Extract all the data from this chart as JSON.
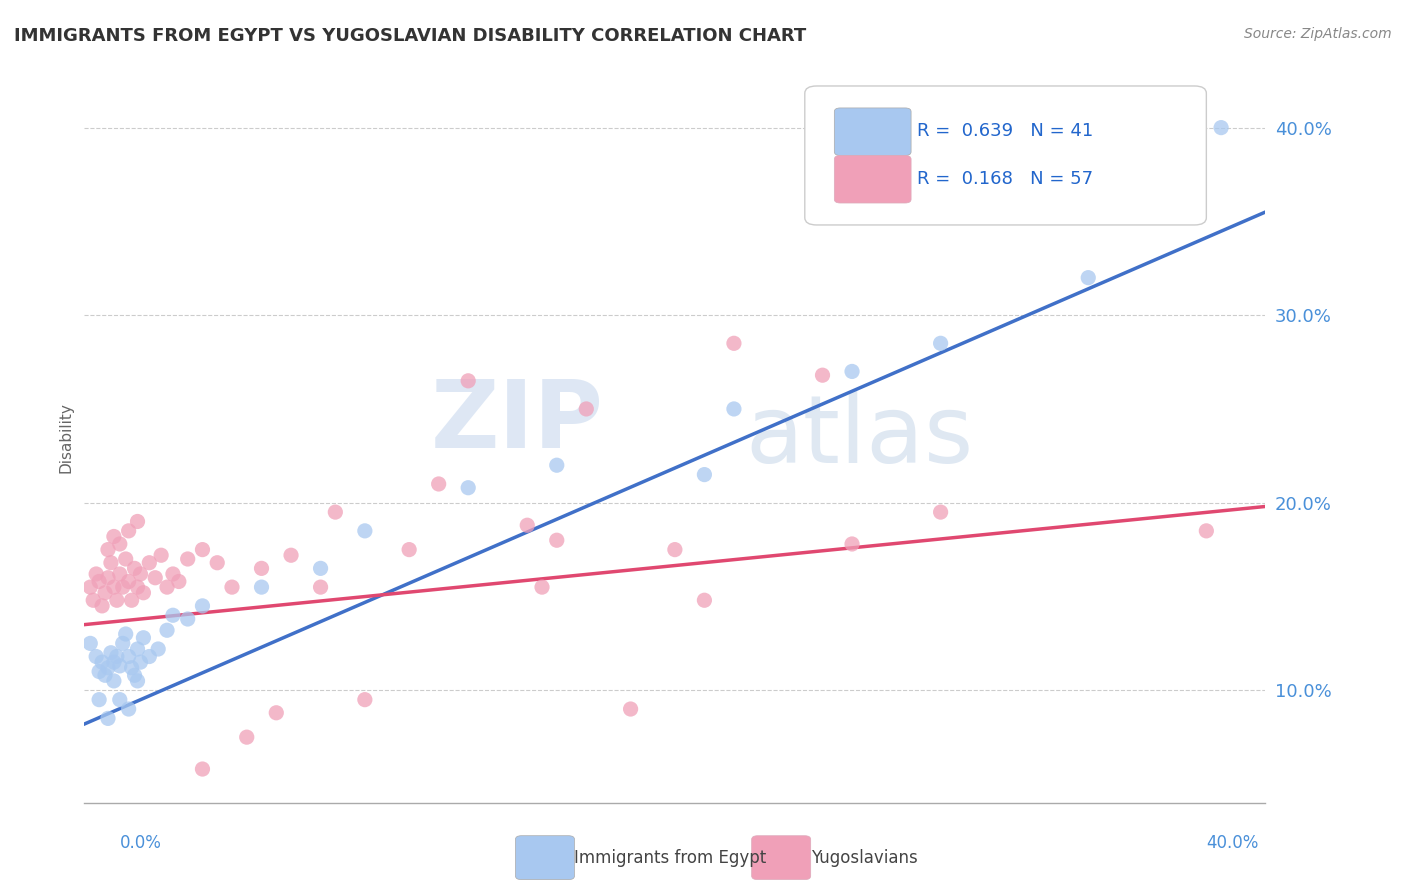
{
  "title": "IMMIGRANTS FROM EGYPT VS YUGOSLAVIAN DISABILITY CORRELATION CHART",
  "source": "Source: ZipAtlas.com",
  "ylabel": "Disability",
  "y_ticks": [
    0.1,
    0.2,
    0.3,
    0.4
  ],
  "y_tick_labels": [
    "10.0%",
    "20.0%",
    "30.0%",
    "40.0%"
  ],
  "x_lim": [
    0.0,
    0.4
  ],
  "y_lim": [
    0.04,
    0.43
  ],
  "blue_color": "#a8c8f0",
  "pink_color": "#f0a0b8",
  "blue_line_color": "#4070c8",
  "pink_line_color": "#e04870",
  "legend_R1": "R = 0.639",
  "legend_N1": "N = 41",
  "legend_R2": "R = 0.168",
  "legend_N2": "N = 57",
  "watermark_zip": "ZIP",
  "watermark_atlas": "atlas",
  "blue_line_x0": 0.0,
  "blue_line_y0": 0.082,
  "blue_line_x1": 0.4,
  "blue_line_y1": 0.355,
  "pink_line_x0": 0.0,
  "pink_line_y0": 0.135,
  "pink_line_x1": 0.4,
  "pink_line_y1": 0.198,
  "blue_scatter_x": [
    0.002,
    0.004,
    0.005,
    0.006,
    0.007,
    0.008,
    0.009,
    0.01,
    0.011,
    0.012,
    0.013,
    0.014,
    0.015,
    0.016,
    0.017,
    0.018,
    0.019,
    0.02,
    0.022,
    0.025,
    0.028,
    0.03,
    0.035,
    0.04,
    0.005,
    0.008,
    0.01,
    0.012,
    0.015,
    0.018,
    0.06,
    0.08,
    0.095,
    0.13,
    0.16,
    0.21,
    0.22,
    0.26,
    0.29,
    0.34,
    0.385
  ],
  "blue_scatter_y": [
    0.125,
    0.118,
    0.11,
    0.115,
    0.108,
    0.112,
    0.12,
    0.105,
    0.118,
    0.113,
    0.125,
    0.13,
    0.118,
    0.112,
    0.108,
    0.122,
    0.115,
    0.128,
    0.118,
    0.122,
    0.132,
    0.14,
    0.138,
    0.145,
    0.095,
    0.085,
    0.115,
    0.095,
    0.09,
    0.105,
    0.155,
    0.165,
    0.185,
    0.208,
    0.22,
    0.215,
    0.25,
    0.27,
    0.285,
    0.32,
    0.4
  ],
  "pink_scatter_x": [
    0.002,
    0.003,
    0.004,
    0.005,
    0.006,
    0.007,
    0.008,
    0.009,
    0.01,
    0.011,
    0.012,
    0.013,
    0.014,
    0.015,
    0.016,
    0.017,
    0.018,
    0.019,
    0.02,
    0.022,
    0.024,
    0.026,
    0.028,
    0.03,
    0.032,
    0.035,
    0.04,
    0.045,
    0.05,
    0.06,
    0.07,
    0.008,
    0.01,
    0.012,
    0.015,
    0.018,
    0.085,
    0.12,
    0.15,
    0.17,
    0.2,
    0.22,
    0.25,
    0.26,
    0.29,
    0.04,
    0.055,
    0.065,
    0.08,
    0.095,
    0.11,
    0.13,
    0.16,
    0.185,
    0.38,
    0.155,
    0.21
  ],
  "pink_scatter_y": [
    0.155,
    0.148,
    0.162,
    0.158,
    0.145,
    0.152,
    0.16,
    0.168,
    0.155,
    0.148,
    0.162,
    0.155,
    0.17,
    0.158,
    0.148,
    0.165,
    0.155,
    0.162,
    0.152,
    0.168,
    0.16,
    0.172,
    0.155,
    0.162,
    0.158,
    0.17,
    0.175,
    0.168,
    0.155,
    0.165,
    0.172,
    0.175,
    0.182,
    0.178,
    0.185,
    0.19,
    0.195,
    0.21,
    0.188,
    0.25,
    0.175,
    0.285,
    0.268,
    0.178,
    0.195,
    0.058,
    0.075,
    0.088,
    0.155,
    0.095,
    0.175,
    0.265,
    0.18,
    0.09,
    0.185,
    0.155,
    0.148
  ]
}
